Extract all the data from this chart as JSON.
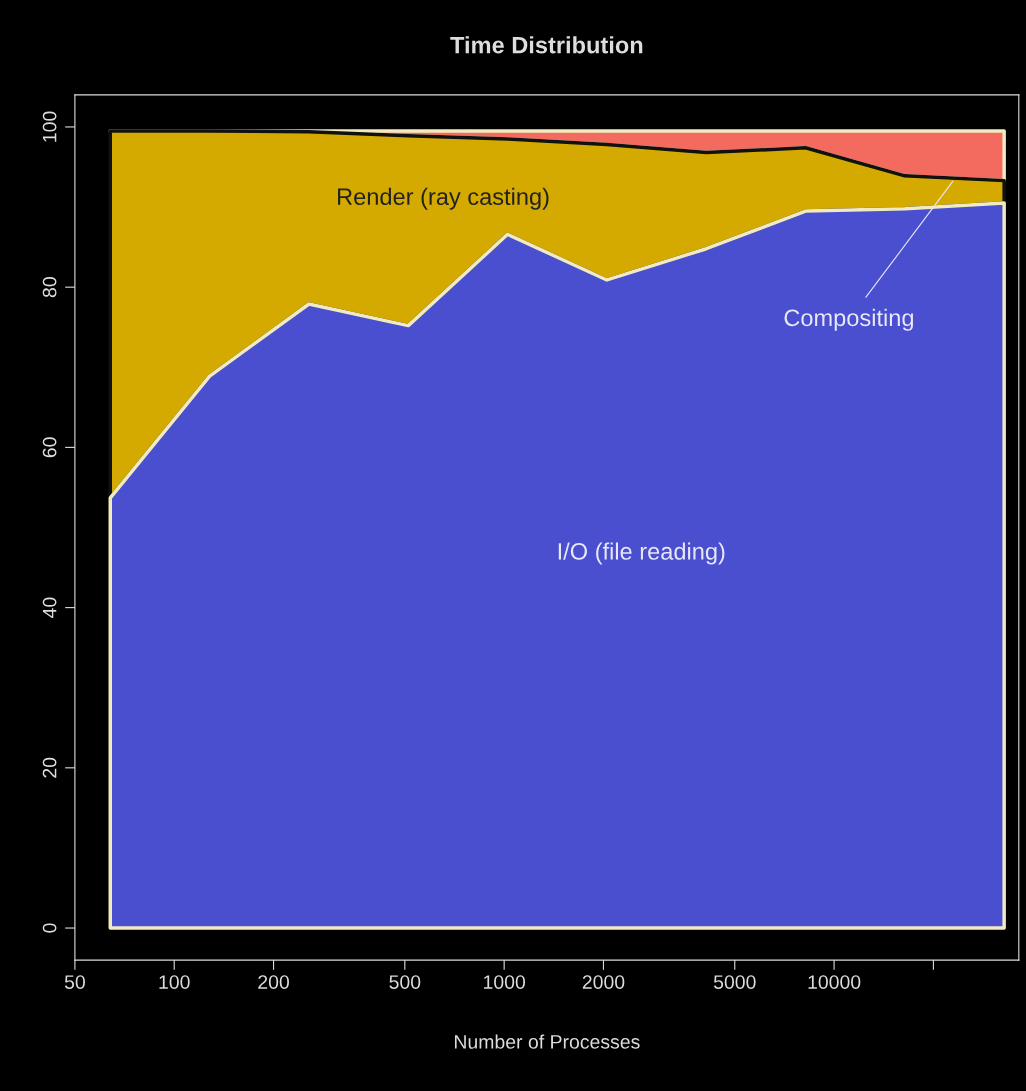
{
  "chart_data": {
    "type": "area",
    "stacked": true,
    "title": "Time Distribution",
    "xlabel": "Number of Processes",
    "log": "x",
    "x": [
      64,
      128,
      256,
      512,
      1024,
      2048,
      4096,
      8192,
      16384,
      32768
    ],
    "series": [
      {
        "name": "I/O (file reading)",
        "color": "#4a4fcf",
        "values": [
          53.7,
          68.9,
          77.9,
          75.2,
          86.6,
          80.9,
          84.8,
          89.5,
          89.8,
          90.5
        ]
      },
      {
        "name": "Render (ray casting)",
        "color": "#d4aa00",
        "values": [
          45.8,
          30.6,
          21.5,
          23.7,
          11.9,
          16.9,
          12.0,
          7.9,
          4.1,
          2.8
        ]
      },
      {
        "name": "Compositing",
        "color": "#f26b5e",
        "values": [
          0,
          0,
          0.1,
          0.6,
          1.0,
          1.7,
          2.7,
          2.1,
          5.6,
          6.2
        ]
      }
    ],
    "xlim": [
      50,
      36300
    ],
    "ylim": [
      -4,
      104
    ],
    "xticks": [
      50,
      100,
      200,
      500,
      1000,
      2000,
      5000,
      10000,
      {
        "value": 20000,
        "label": null
      }
    ],
    "yticks": [
      0,
      20,
      40,
      60,
      80,
      100
    ],
    "grid": false,
    "legend": false
  }
}
